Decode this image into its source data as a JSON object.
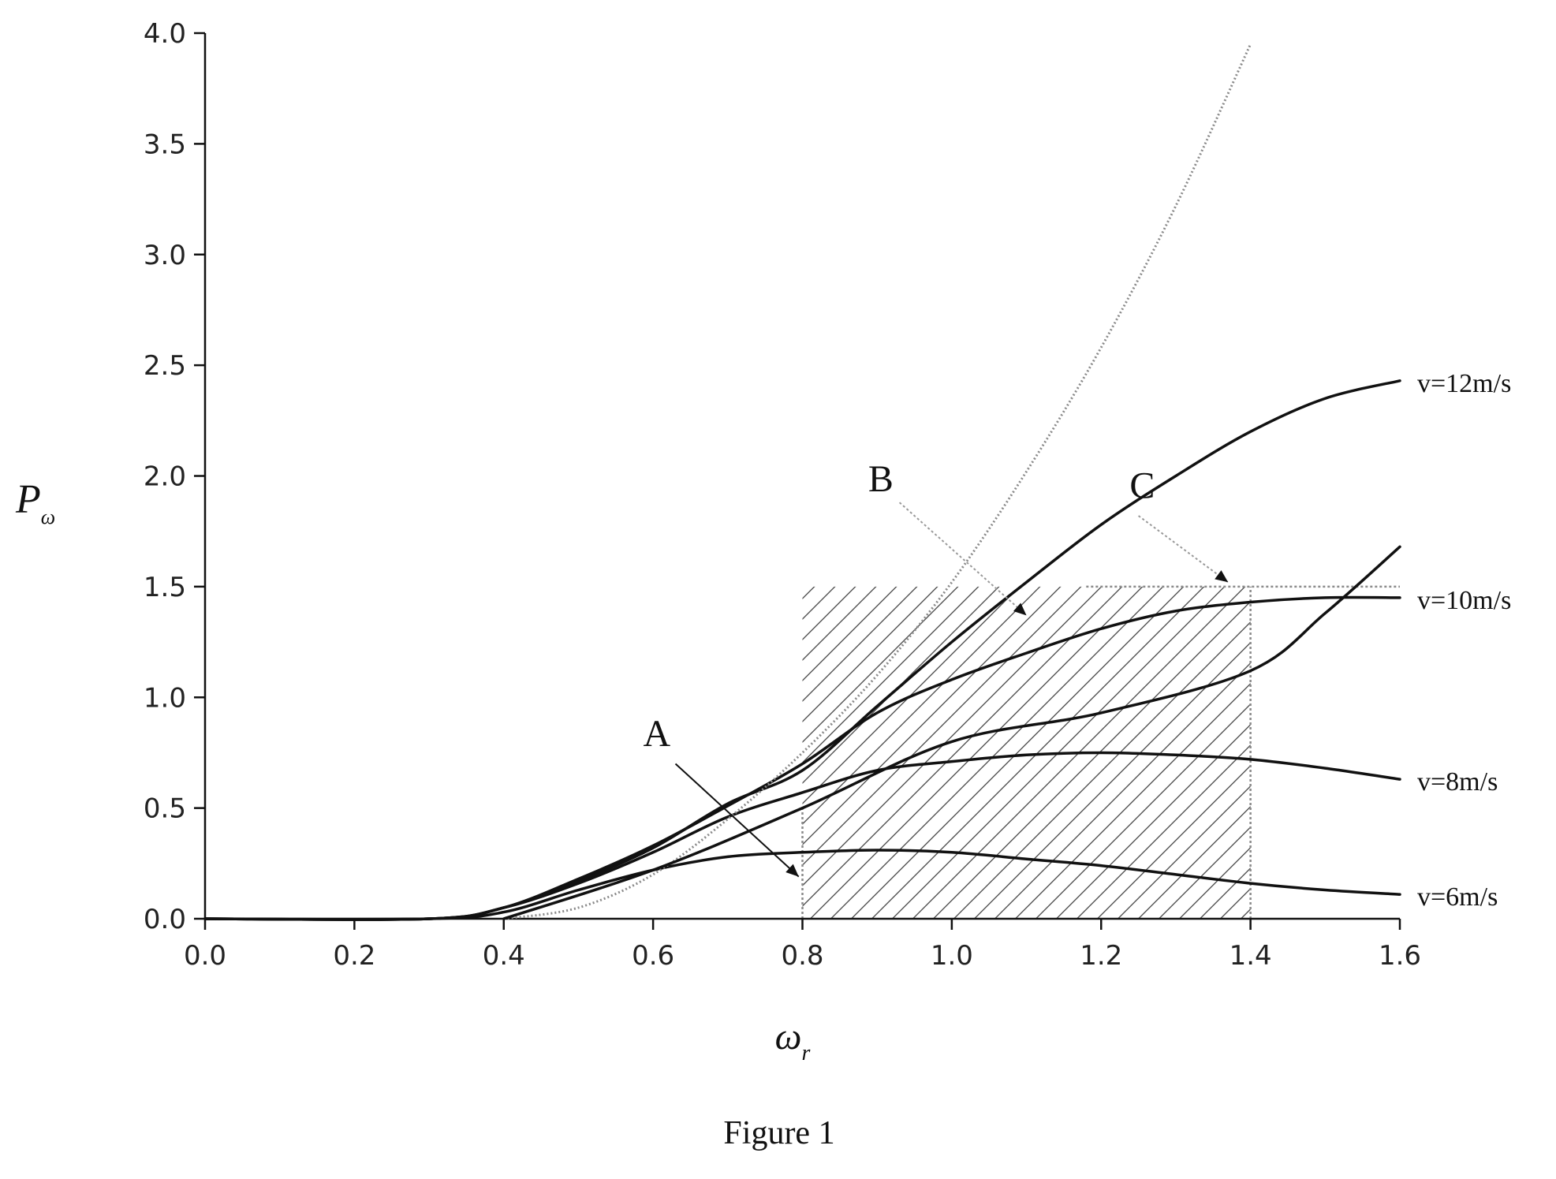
{
  "chart_data": {
    "type": "line",
    "xlabel": "ω",
    "xlabel_sub": "r",
    "ylabel": "P",
    "ylabel_sub": "ω",
    "caption": "Figure 1",
    "xlim": [
      0.0,
      1.6
    ],
    "ylim": [
      0.0,
      4.0
    ],
    "xticks": [
      0.0,
      0.2,
      0.4,
      0.6,
      0.8,
      1.0,
      1.2,
      1.4,
      1.6
    ],
    "xtick_labels": [
      "0.0",
      "0.2",
      "0.4",
      "0.6",
      "0.8",
      "1.0",
      "1.2",
      "1.4",
      "1.6"
    ],
    "yticks": [
      0.0,
      0.5,
      1.0,
      1.5,
      2.0,
      2.5,
      3.0,
      3.5,
      4.0
    ],
    "ytick_labels": [
      "0.0",
      "0.5",
      "1.0",
      "1.5",
      "2.0",
      "2.5",
      "3.0",
      "3.5",
      "4.0"
    ],
    "series": [
      {
        "name": "v=6m/s",
        "points": [
          [
            0.0,
            0.0
          ],
          [
            0.3,
            0.0
          ],
          [
            0.4,
            0.03
          ],
          [
            0.5,
            0.13
          ],
          [
            0.6,
            0.22
          ],
          [
            0.7,
            0.28
          ],
          [
            0.8,
            0.3
          ],
          [
            0.9,
            0.31
          ],
          [
            1.0,
            0.3
          ],
          [
            1.1,
            0.27
          ],
          [
            1.2,
            0.24
          ],
          [
            1.3,
            0.2
          ],
          [
            1.4,
            0.16
          ],
          [
            1.5,
            0.13
          ],
          [
            1.6,
            0.11
          ]
        ]
      },
      {
        "name": "v=8m/s",
        "points": [
          [
            0.0,
            0.0
          ],
          [
            0.3,
            0.0
          ],
          [
            0.4,
            0.05
          ],
          [
            0.5,
            0.16
          ],
          [
            0.6,
            0.3
          ],
          [
            0.7,
            0.46
          ],
          [
            0.8,
            0.57
          ],
          [
            0.9,
            0.67
          ],
          [
            1.0,
            0.71
          ],
          [
            1.1,
            0.74
          ],
          [
            1.2,
            0.75
          ],
          [
            1.3,
            0.74
          ],
          [
            1.4,
            0.72
          ],
          [
            1.5,
            0.68
          ],
          [
            1.6,
            0.63
          ]
        ]
      },
      {
        "name": "v=10m/s",
        "points": [
          [
            0.0,
            0.0
          ],
          [
            0.3,
            0.0
          ],
          [
            0.4,
            0.05
          ],
          [
            0.5,
            0.18
          ],
          [
            0.6,
            0.33
          ],
          [
            0.7,
            0.51
          ],
          [
            0.8,
            0.7
          ],
          [
            0.9,
            0.93
          ],
          [
            1.0,
            1.08
          ],
          [
            1.1,
            1.2
          ],
          [
            1.2,
            1.31
          ],
          [
            1.3,
            1.39
          ],
          [
            1.4,
            1.43
          ],
          [
            1.5,
            1.45
          ],
          [
            1.6,
            1.45
          ]
        ]
      },
      {
        "name": "v=12m/s",
        "points": [
          [
            0.0,
            0.0
          ],
          [
            0.3,
            0.0
          ],
          [
            0.4,
            0.05
          ],
          [
            0.5,
            0.17
          ],
          [
            0.6,
            0.32
          ],
          [
            0.7,
            0.52
          ],
          [
            0.8,
            0.67
          ],
          [
            0.9,
            0.96
          ],
          [
            1.0,
            1.25
          ],
          [
            1.1,
            1.52
          ],
          [
            1.2,
            1.78
          ],
          [
            1.3,
            2.0
          ],
          [
            1.4,
            2.2
          ],
          [
            1.5,
            2.35
          ],
          [
            1.6,
            2.43
          ]
        ]
      },
      {
        "name": "",
        "style": "gray-dotted",
        "points": [
          [
            0.4,
            0.0
          ],
          [
            0.5,
            0.05
          ],
          [
            0.6,
            0.2
          ],
          [
            0.7,
            0.45
          ],
          [
            0.8,
            0.75
          ],
          [
            0.9,
            1.1
          ],
          [
            1.0,
            1.52
          ],
          [
            1.1,
            2.02
          ],
          [
            1.2,
            2.58
          ],
          [
            1.3,
            3.22
          ],
          [
            1.4,
            3.95
          ]
        ]
      },
      {
        "name": "",
        "style": "black",
        "points": [
          [
            0.4,
            0.0
          ],
          [
            0.6,
            0.22
          ],
          [
            0.8,
            0.5
          ],
          [
            1.0,
            0.8
          ],
          [
            1.2,
            0.93
          ],
          [
            1.4,
            1.12
          ],
          [
            1.5,
            1.38
          ],
          [
            1.6,
            1.68
          ]
        ]
      }
    ],
    "shaded_region": {
      "x": [
        0.8,
        1.4
      ],
      "y_top": 1.5
    },
    "reference_lines": [
      {
        "x": 0.8,
        "y": [
          0.0,
          0.5
        ]
      },
      {
        "x": 1.4,
        "y": [
          0.0,
          1.5
        ]
      },
      {
        "y": 1.5,
        "x": [
          1.18,
          1.6
        ]
      }
    ],
    "annotations": [
      {
        "text": "A"
      },
      {
        "text": "B"
      },
      {
        "text": "C"
      }
    ]
  }
}
